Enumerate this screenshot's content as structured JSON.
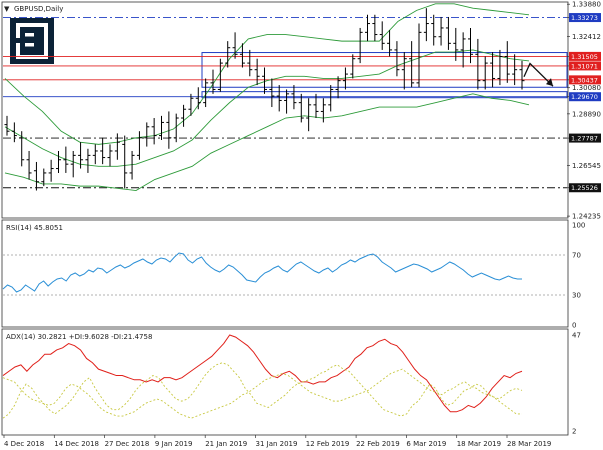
{
  "symbol_title": "GBPUSD,Daily",
  "colors": {
    "blue": "#1f3cc2",
    "red": "#e02020",
    "bb": "#2e9b3a",
    "rsi": "#2a8fd6",
    "adx_main": "#e0201a",
    "adx_di": "#c8c840"
  },
  "chart_data": [
    {
      "type": "ohlc",
      "title": "GBPUSD,Daily",
      "ylim": [
        1.2424,
        1.3389
      ],
      "y_ticks": [
        "1.33880",
        "1.33273",
        "1.32412",
        "1.31505",
        "1.31071",
        "1.30437",
        "1.30080",
        "1.29670",
        "1.28890",
        "1.27787",
        "1.26545",
        "1.25526",
        "1.24235"
      ],
      "price_labels": [
        {
          "label": "1.33273",
          "value": 1.33273,
          "color": "#1f3cc2",
          "style": "dashdot"
        },
        {
          "label": "1.31505",
          "value": 1.31505,
          "color": "#e02020",
          "style": "solid"
        },
        {
          "label": "1.31071",
          "value": 1.31071,
          "color": "#e02020",
          "style": "solid"
        },
        {
          "label": "1.30437",
          "value": 1.30437,
          "color": "#e02020",
          "style": "solid"
        },
        {
          "label": "1.29670",
          "value": 1.2967,
          "color": "#1f3cc2",
          "style": "solid"
        },
        {
          "label": "1.27787",
          "value": 1.27787,
          "color": "#111111",
          "style": "dashdot"
        },
        {
          "label": "1.25526",
          "value": 1.25526,
          "color": "#111111",
          "style": "dashdot"
        }
      ],
      "x_labels": [
        "4 Dec 2018",
        "14 Dec 2018",
        "27 Dec 2018",
        "9 Jan 2019",
        "21 Jan 2019",
        "31 Jan 2019",
        "12 Feb 2019",
        "22 Feb 2019",
        "6 Mar 2019",
        "18 Mar 2019",
        "28 Mar 2019"
      ],
      "bollinger": {
        "upper": [
          1.305,
          1.297,
          1.29,
          1.281,
          1.276,
          1.275,
          1.276,
          1.278,
          1.279,
          1.282,
          1.289,
          1.301,
          1.314,
          1.323,
          1.325,
          1.325,
          1.324,
          1.323,
          1.322,
          1.322,
          1.322,
          1.331,
          1.336,
          1.339,
          1.339,
          1.337,
          1.336,
          1.335,
          1.334
        ],
        "middle": [
          1.283,
          1.278,
          1.273,
          1.269,
          1.266,
          1.265,
          1.265,
          1.266,
          1.269,
          1.272,
          1.277,
          1.286,
          1.294,
          1.301,
          1.304,
          1.306,
          1.306,
          1.305,
          1.305,
          1.306,
          1.307,
          1.311,
          1.314,
          1.317,
          1.317,
          1.318,
          1.316,
          1.314,
          1.313
        ],
        "lower": [
          1.262,
          1.26,
          1.257,
          1.257,
          1.256,
          1.256,
          1.255,
          1.254,
          1.259,
          1.262,
          1.265,
          1.271,
          1.275,
          1.279,
          1.283,
          1.287,
          1.288,
          1.287,
          1.288,
          1.29,
          1.292,
          1.292,
          1.292,
          1.294,
          1.296,
          1.298,
          1.296,
          1.295,
          1.293
        ]
      },
      "bars": [
        [
          1.284,
          1.288,
          1.279,
          1.281
        ],
        [
          1.281,
          1.285,
          1.276,
          1.279
        ],
        [
          1.278,
          1.281,
          1.265,
          1.268
        ],
        [
          1.268,
          1.272,
          1.259,
          1.262
        ],
        [
          1.263,
          1.267,
          1.254,
          1.258
        ],
        [
          1.258,
          1.264,
          1.256,
          1.262
        ],
        [
          1.262,
          1.268,
          1.258,
          1.264
        ],
        [
          1.264,
          1.272,
          1.262,
          1.268
        ],
        [
          1.268,
          1.274,
          1.262,
          1.266
        ],
        [
          1.266,
          1.272,
          1.26,
          1.27
        ],
        [
          1.27,
          1.276,
          1.264,
          1.268
        ],
        [
          1.268,
          1.273,
          1.262,
          1.27
        ],
        [
          1.27,
          1.275,
          1.266,
          1.272
        ],
        [
          1.272,
          1.278,
          1.266,
          1.269
        ],
        [
          1.269,
          1.275,
          1.265,
          1.272
        ],
        [
          1.272,
          1.28,
          1.268,
          1.276
        ],
        [
          1.275,
          1.279,
          1.255,
          1.262
        ],
        [
          1.262,
          1.272,
          1.259,
          1.27
        ],
        [
          1.27,
          1.281,
          1.268,
          1.278
        ],
        [
          1.278,
          1.285,
          1.274,
          1.283
        ],
        [
          1.283,
          1.287,
          1.275,
          1.279
        ],
        [
          1.279,
          1.288,
          1.277,
          1.285
        ],
        [
          1.285,
          1.29,
          1.273,
          1.278
        ],
        [
          1.278,
          1.289,
          1.276,
          1.287
        ],
        [
          1.287,
          1.293,
          1.283,
          1.291
        ],
        [
          1.291,
          1.298,
          1.288,
          1.296
        ],
        [
          1.296,
          1.301,
          1.291,
          1.294
        ],
        [
          1.294,
          1.305,
          1.292,
          1.303
        ],
        [
          1.303,
          1.309,
          1.298,
          1.3
        ],
        [
          1.3,
          1.314,
          1.299,
          1.312
        ],
        [
          1.312,
          1.322,
          1.31,
          1.319
        ],
        [
          1.319,
          1.326,
          1.314,
          1.316
        ],
        [
          1.316,
          1.321,
          1.31,
          1.312
        ],
        [
          1.312,
          1.318,
          1.306,
          1.309
        ],
        [
          1.309,
          1.314,
          1.302,
          1.306
        ],
        [
          1.306,
          1.31,
          1.298,
          1.3
        ],
        [
          1.3,
          1.305,
          1.292,
          1.297
        ],
        [
          1.297,
          1.302,
          1.29,
          1.295
        ],
        [
          1.295,
          1.3,
          1.289,
          1.298
        ],
        [
          1.298,
          1.302,
          1.291,
          1.294
        ],
        [
          1.294,
          1.298,
          1.285,
          1.287
        ],
        [
          1.287,
          1.296,
          1.281,
          1.293
        ],
        [
          1.293,
          1.298,
          1.287,
          1.29
        ],
        [
          1.29,
          1.296,
          1.285,
          1.293
        ],
        [
          1.293,
          1.302,
          1.29,
          1.3
        ],
        [
          1.3,
          1.306,
          1.296,
          1.304
        ],
        [
          1.304,
          1.31,
          1.3,
          1.307
        ],
        [
          1.307,
          1.316,
          1.305,
          1.314
        ],
        [
          1.314,
          1.328,
          1.312,
          1.326
        ],
        [
          1.326,
          1.334,
          1.322,
          1.33
        ],
        [
          1.33,
          1.334,
          1.322,
          1.325
        ],
        [
          1.325,
          1.331,
          1.318,
          1.321
        ],
        [
          1.321,
          1.327,
          1.315,
          1.318
        ],
        [
          1.318,
          1.322,
          1.306,
          1.309
        ],
        [
          1.309,
          1.317,
          1.3,
          1.314
        ],
        [
          1.314,
          1.322,
          1.301,
          1.303
        ],
        [
          1.303,
          1.33,
          1.301,
          1.326
        ],
        [
          1.326,
          1.337,
          1.322,
          1.33
        ],
        [
          1.33,
          1.334,
          1.32,
          1.324
        ],
        [
          1.324,
          1.333,
          1.32,
          1.328
        ],
        [
          1.328,
          1.333,
          1.318,
          1.321
        ],
        [
          1.321,
          1.328,
          1.313,
          1.318
        ],
        [
          1.318,
          1.326,
          1.31,
          1.323
        ],
        [
          1.323,
          1.328,
          1.312,
          1.316
        ],
        [
          1.316,
          1.323,
          1.3,
          1.304
        ],
        [
          1.304,
          1.315,
          1.3,
          1.312
        ],
        [
          1.312,
          1.317,
          1.301,
          1.305
        ],
        [
          1.305,
          1.318,
          1.302,
          1.315
        ],
        [
          1.315,
          1.322,
          1.303,
          1.307
        ],
        [
          1.307,
          1.316,
          1.302,
          1.309
        ],
        [
          1.309,
          1.313,
          1.3,
          1.304
        ]
      ],
      "arrow_projection": [
        [
          1.3118
        ],
        [
          1.3015
        ]
      ]
    },
    {
      "type": "line",
      "title": "RSI(14) 45.8051",
      "ylim": [
        0,
        100
      ],
      "y_ticks": [
        "100",
        "70",
        "30",
        "0"
      ],
      "levels": [
        70,
        30
      ],
      "series": [
        {
          "name": "RSI(14)",
          "values": [
            36,
            40,
            38,
            33,
            35,
            40,
            37,
            34,
            41,
            44,
            39,
            43,
            46,
            47,
            44,
            50,
            52,
            49,
            51,
            55,
            53,
            57,
            56,
            52,
            55,
            58,
            60,
            57,
            59,
            62,
            64,
            66,
            63,
            61,
            65,
            67,
            66,
            63,
            68,
            72,
            71,
            65,
            62,
            66,
            68,
            62,
            58,
            55,
            53,
            56,
            60,
            58,
            54,
            50,
            45,
            44,
            43,
            48,
            52,
            54,
            57,
            59,
            55,
            53,
            57,
            61,
            63,
            60,
            57,
            54,
            52,
            55,
            57,
            53,
            56,
            60,
            62,
            65,
            63,
            66,
            68,
            70,
            71,
            68,
            63,
            60,
            57,
            53,
            55,
            57,
            59,
            61,
            60,
            58,
            56,
            53,
            55,
            57,
            60,
            63,
            61,
            58,
            55,
            51,
            48,
            50,
            52,
            50,
            48,
            46,
            45,
            47,
            49,
            47,
            46,
            46
          ]
        }
      ]
    },
    {
      "type": "line",
      "title": "ADX(14) 30.2821 +DI:9.6028 -DI:21.4758",
      "ylim": [
        2,
        47
      ],
      "y_ticks": [
        "47",
        "2"
      ],
      "series": [
        {
          "name": "ADX(14)",
          "values": [
            28,
            30,
            32,
            33,
            30,
            33,
            35,
            38,
            38,
            40,
            41,
            43,
            42,
            40,
            36,
            34,
            31,
            30,
            29,
            28,
            28,
            27,
            26,
            26,
            25,
            26,
            25,
            27,
            27,
            26,
            27,
            29,
            31,
            33,
            35,
            37,
            40,
            43,
            47,
            46,
            44,
            42,
            39,
            35,
            31,
            28,
            27,
            29,
            30,
            28,
            25,
            25,
            24,
            25,
            25,
            27,
            28,
            30,
            32,
            36,
            38,
            41,
            42,
            44,
            45,
            43,
            42,
            39,
            35,
            31,
            28,
            26,
            22,
            18,
            14,
            11,
            11,
            12,
            14,
            13,
            15,
            18,
            22,
            25,
            28,
            27,
            29,
            30
          ]
        },
        {
          "name": "+DI",
          "values": [
            8,
            10,
            14,
            20,
            24,
            22,
            18,
            15,
            12,
            10,
            12,
            14,
            17,
            21,
            25,
            27,
            22,
            18,
            14,
            12,
            12,
            14,
            17,
            21,
            24,
            26,
            28,
            27,
            23,
            20,
            17,
            16,
            17,
            20,
            24,
            28,
            31,
            33,
            34,
            33,
            30,
            27,
            22,
            19,
            15,
            14,
            13,
            15,
            17,
            19,
            22,
            24,
            25,
            26,
            27,
            29,
            30,
            32,
            33,
            31,
            30,
            27,
            24,
            21,
            18,
            15,
            12,
            11,
            10,
            9,
            10,
            14,
            16,
            20,
            24,
            22,
            17,
            14,
            15,
            18,
            21,
            22,
            24,
            23,
            20,
            18,
            16,
            14,
            12,
            10,
            10
          ]
        },
        {
          "name": "-DI",
          "values": [
            27,
            26,
            25,
            22,
            19,
            17,
            16,
            15,
            14,
            15,
            18,
            22,
            24,
            23,
            21,
            19,
            16,
            13,
            11,
            10,
            9,
            9,
            10,
            11,
            13,
            15,
            16,
            17,
            16,
            14,
            12,
            10,
            9,
            8,
            9,
            10,
            11,
            12,
            13,
            14,
            15,
            17,
            19,
            20,
            22,
            24,
            26,
            27,
            28,
            29,
            28,
            26,
            24,
            22,
            20,
            19,
            18,
            17,
            16,
            16,
            17,
            18,
            19,
            20,
            21,
            23,
            25,
            27,
            29,
            30,
            31,
            29,
            27,
            25,
            23,
            21,
            20,
            19,
            21,
            22,
            24,
            25,
            23,
            22,
            20,
            19,
            18,
            17,
            19,
            21,
            22,
            21
          ]
        }
      ]
    }
  ]
}
